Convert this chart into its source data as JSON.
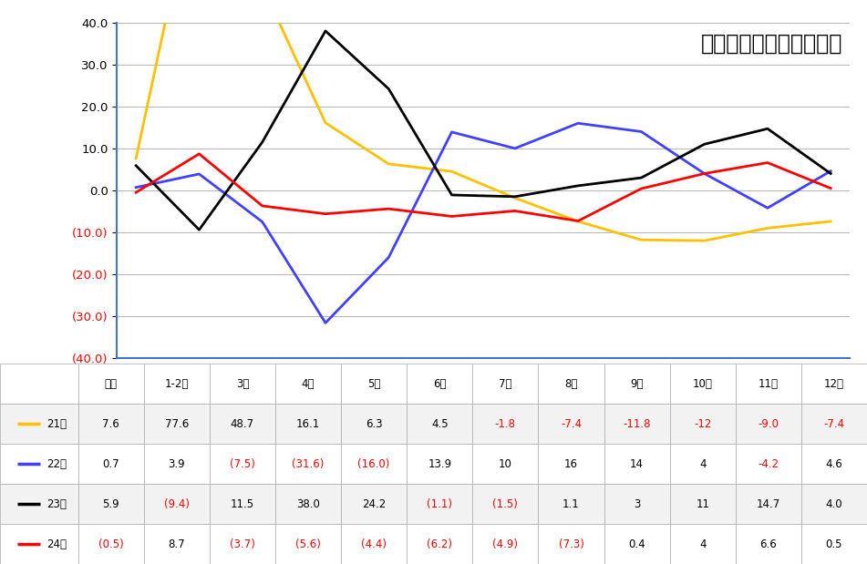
{
  "title": "汽车消费额月度增速走势",
  "categories": [
    "年累",
    "1-2月",
    "3月",
    "4月",
    "5月",
    "6月",
    "7月",
    "8月",
    "9月",
    "10月",
    "11月",
    "12月"
  ],
  "series_order": [
    "21年",
    "22年",
    "23年",
    "24年"
  ],
  "series": {
    "21年": {
      "color": "#FFC000",
      "values": [
        7.6,
        77.6,
        48.7,
        16.1,
        6.3,
        4.5,
        -1.8,
        -7.4,
        -11.8,
        -12.0,
        -9.0,
        -7.4
      ],
      "table_values": [
        "7.6",
        "77.6",
        "48.7",
        "16.1",
        "6.3",
        "4.5",
        "-1.8",
        "-7.4",
        "-11.8",
        "-12",
        "-9.0",
        "-7.4"
      ]
    },
    "22年": {
      "color": "#4040FF",
      "values": [
        0.7,
        3.9,
        -7.5,
        -31.6,
        -16.0,
        13.9,
        10.0,
        16.0,
        14.0,
        4.0,
        -4.2,
        4.6
      ],
      "table_values": [
        "0.7",
        "3.9",
        "(7.5)",
        "(31.6)",
        "(16.0)",
        "13.9",
        "10",
        "16",
        "14",
        "4",
        "-4.2",
        "4.6"
      ]
    },
    "23年": {
      "color": "#000000",
      "values": [
        5.9,
        -9.4,
        11.5,
        38.0,
        24.2,
        -1.1,
        -1.5,
        1.1,
        3.0,
        11.0,
        14.7,
        4.0
      ],
      "table_values": [
        "5.9",
        "(9.4)",
        "11.5",
        "38.0",
        "24.2",
        "(1.1)",
        "(1.5)",
        "1.1",
        "3",
        "11",
        "14.7",
        "4.0"
      ]
    },
    "24年": {
      "color": "#FF0000",
      "values": [
        -0.5,
        8.7,
        -3.7,
        -5.6,
        -4.4,
        -6.2,
        -4.9,
        -7.3,
        0.4,
        4.0,
        6.6,
        0.5
      ],
      "table_values": [
        "(0.5)",
        "8.7",
        "(3.7)",
        "(5.6)",
        "(4.4)",
        "(6.2)",
        "(4.9)",
        "(7.3)",
        "0.4",
        "4",
        "6.6",
        "0.5"
      ]
    }
  },
  "ylim": [
    -40,
    40
  ],
  "yticks": [
    -40,
    -30,
    -20,
    -10,
    0,
    10,
    20,
    30,
    40
  ],
  "title_fontsize": 17,
  "axis_color": "#4472C4",
  "grid_color": "#AAAAAA",
  "table_header_bg": "#FFFFFF",
  "table_odd_bg": "#F2F2F2",
  "table_even_bg": "#FFFFFF"
}
